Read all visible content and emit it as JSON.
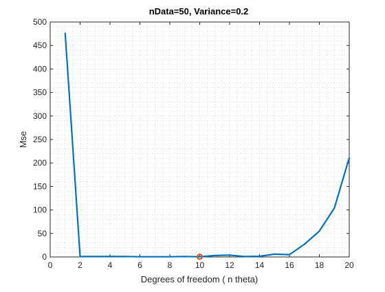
{
  "chart_data": {
    "type": "line",
    "title": "nData=50, Variance=0.2",
    "xlabel": "Degrees of freedom ( n theta)",
    "ylabel": "Mse",
    "xlim": [
      0,
      20
    ],
    "ylim": [
      0,
      500
    ],
    "xticks": [
      "0",
      "2",
      "4",
      "6",
      "8",
      "10",
      "12",
      "14",
      "16",
      "18",
      "20"
    ],
    "yticks": [
      "0",
      "50",
      "100",
      "150",
      "200",
      "250",
      "300",
      "350",
      "400",
      "450",
      "500"
    ],
    "grid": "minor dotted",
    "series": [
      {
        "color": "#0072BD",
        "x": [
          1,
          2,
          3,
          4,
          5,
          6,
          7,
          8,
          9,
          10,
          11,
          12,
          13,
          14,
          15,
          16,
          17,
          18,
          19,
          20
        ],
        "y": [
          476,
          1,
          1,
          1,
          1,
          0.5,
          0.5,
          0.5,
          1,
          0.5,
          3,
          4,
          1,
          1.5,
          6,
          5,
          27,
          55,
          104,
          211
        ]
      }
    ],
    "marker": {
      "x": 10,
      "y": 0.5,
      "shape": "circle",
      "color": "#D95319"
    }
  }
}
